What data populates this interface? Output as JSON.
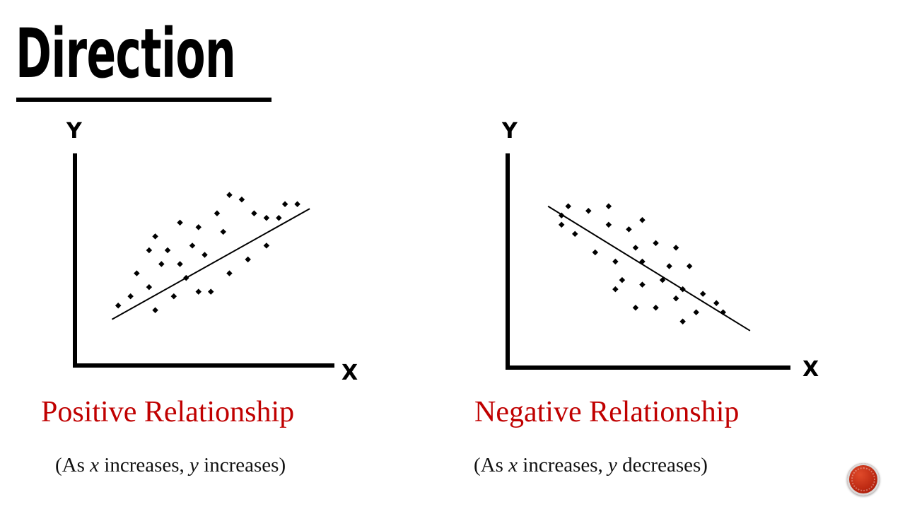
{
  "slide": {
    "title": "Direction",
    "accent_color": "#c00000",
    "badge_icon": "slide-number-circle"
  },
  "chart_data": [
    {
      "type": "scatter",
      "title": "Positive Relationship",
      "description_parts": [
        "(As ",
        "x",
        " increases, ",
        "y",
        " increases)"
      ],
      "xlabel": "X",
      "ylabel": "Y",
      "trend": "positive",
      "trend_line": [
        [
          0.6,
          1.0
        ],
        [
          3.8,
          3.4
        ]
      ],
      "points": [
        [
          0.7,
          1.3
        ],
        [
          0.9,
          1.5
        ],
        [
          1.3,
          1.2
        ],
        [
          1.2,
          1.7
        ],
        [
          1.0,
          2.0
        ],
        [
          1.5,
          2.5
        ],
        [
          1.6,
          1.5
        ],
        [
          1.8,
          1.9
        ],
        [
          2.0,
          1.6
        ],
        [
          1.4,
          2.2
        ],
        [
          2.2,
          1.6
        ],
        [
          2.1,
          2.4
        ],
        [
          2.5,
          2.0
        ],
        [
          1.7,
          2.2
        ],
        [
          2.4,
          2.9
        ],
        [
          2.8,
          2.3
        ],
        [
          3.1,
          2.6
        ],
        [
          2.0,
          3.0
        ],
        [
          2.7,
          3.6
        ],
        [
          3.3,
          3.2
        ],
        [
          3.6,
          3.5
        ],
        [
          2.5,
          3.7
        ],
        [
          1.9,
          2.6
        ],
        [
          1.2,
          2.5
        ],
        [
          1.7,
          3.1
        ],
        [
          3.4,
          3.5
        ],
        [
          2.3,
          3.3
        ],
        [
          3.1,
          3.2
        ],
        [
          1.3,
          2.8
        ],
        [
          2.9,
          3.3
        ]
      ],
      "xlim": [
        0,
        4.2
      ],
      "ylim": [
        0,
        4.6
      ]
    },
    {
      "type": "scatter",
      "title": "Negative Relationship",
      "description_parts": [
        "(As ",
        "x",
        " increases, ",
        "y",
        " decreases)"
      ],
      "xlabel": "X",
      "ylabel": "Y",
      "trend": "negative",
      "trend_line": [
        [
          0.6,
          3.5
        ],
        [
          3.6,
          0.8
        ]
      ],
      "points": [
        [
          0.8,
          3.3
        ],
        [
          0.9,
          3.5
        ],
        [
          1.2,
          3.4
        ],
        [
          1.5,
          3.5
        ],
        [
          0.8,
          3.1
        ],
        [
          1.0,
          2.9
        ],
        [
          1.3,
          2.5
        ],
        [
          1.6,
          2.3
        ],
        [
          1.5,
          3.1
        ],
        [
          1.8,
          3.0
        ],
        [
          2.0,
          3.2
        ],
        [
          1.9,
          2.6
        ],
        [
          2.2,
          2.7
        ],
        [
          2.5,
          2.6
        ],
        [
          2.4,
          2.2
        ],
        [
          2.7,
          2.2
        ],
        [
          2.3,
          1.9
        ],
        [
          2.0,
          1.8
        ],
        [
          1.7,
          1.9
        ],
        [
          2.6,
          1.7
        ],
        [
          2.5,
          1.5
        ],
        [
          2.9,
          1.6
        ],
        [
          3.1,
          1.4
        ],
        [
          3.2,
          1.2
        ],
        [
          2.8,
          1.2
        ],
        [
          2.2,
          1.3
        ],
        [
          1.9,
          1.3
        ],
        [
          1.6,
          1.7
        ],
        [
          2.6,
          1.0
        ],
        [
          2.0,
          2.3
        ]
      ],
      "xlim": [
        0,
        4.2
      ],
      "ylim": [
        0,
        4.6
      ]
    }
  ]
}
